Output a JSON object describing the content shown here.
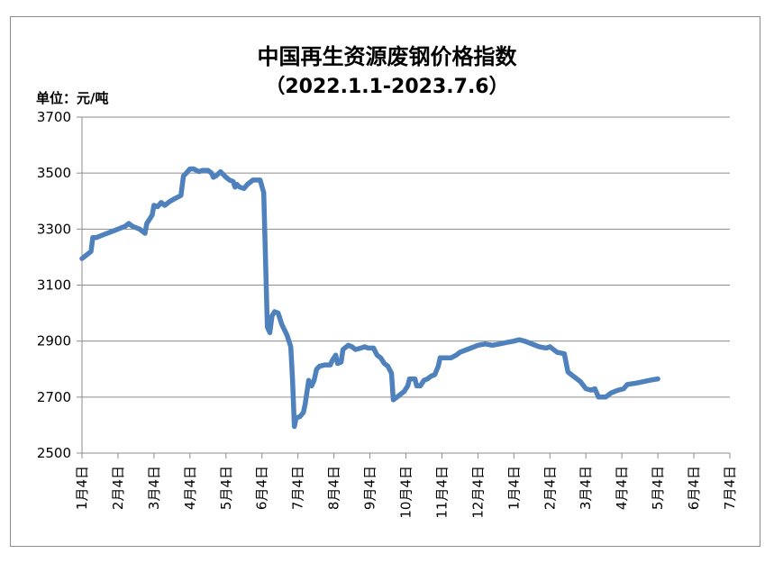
{
  "chart_data": {
    "type": "line",
    "title": "中国再生资源废钢价格指数",
    "subtitle": "（2022.1.1-2023.7.6）",
    "ylabel": "单位：元/吨",
    "ylim": [
      2500,
      3700
    ],
    "yticks": [
      "3700",
      "3500",
      "3300",
      "3100",
      "2900",
      "2700",
      "2500"
    ],
    "grid": true,
    "legend": "none",
    "categories": [
      "1月4日",
      "2月4日",
      "3月4日",
      "4月4日",
      "5月4日",
      "6月4日",
      "7月4日",
      "8月4日",
      "9月4日",
      "10月4日",
      "11月4日",
      "12月4日",
      "1月4日",
      "2月4日",
      "3月4日",
      "4月4日",
      "5月4日",
      "6月4日",
      "7月4日"
    ],
    "series": [
      {
        "color": "#4f81bd",
        "values": [
          [
            0,
            3195
          ],
          [
            0.15,
            3210
          ],
          [
            0.25,
            3220
          ],
          [
            0.3,
            3270
          ],
          [
            0.4,
            3270
          ],
          [
            0.6,
            3280
          ],
          [
            0.9,
            3295
          ],
          [
            1.2,
            3310
          ],
          [
            1.3,
            3320
          ],
          [
            1.4,
            3310
          ],
          [
            1.6,
            3300
          ],
          [
            1.75,
            3285
          ],
          [
            1.8,
            3320
          ],
          [
            1.95,
            3350
          ],
          [
            2.0,
            3385
          ],
          [
            2.1,
            3380
          ],
          [
            2.2,
            3395
          ],
          [
            2.3,
            3385
          ],
          [
            2.45,
            3400
          ],
          [
            2.6,
            3410
          ],
          [
            2.75,
            3420
          ],
          [
            2.82,
            3490
          ],
          [
            2.9,
            3500
          ],
          [
            3.0,
            3515
          ],
          [
            3.1,
            3515
          ],
          [
            3.25,
            3505
          ],
          [
            3.35,
            3510
          ],
          [
            3.5,
            3510
          ],
          [
            3.6,
            3500
          ],
          [
            3.65,
            3485
          ],
          [
            3.72,
            3490
          ],
          [
            3.85,
            3505
          ],
          [
            4.0,
            3485
          ],
          [
            4.1,
            3475
          ],
          [
            4.2,
            3470
          ],
          [
            4.25,
            3450
          ],
          [
            4.3,
            3460
          ],
          [
            4.38,
            3450
          ],
          [
            4.5,
            3445
          ],
          [
            4.6,
            3460
          ],
          [
            4.75,
            3475
          ],
          [
            4.85,
            3475
          ],
          [
            4.95,
            3475
          ],
          [
            5.05,
            3430
          ],
          [
            5.15,
            2950
          ],
          [
            5.22,
            2930
          ],
          [
            5.28,
            2990
          ],
          [
            5.35,
            3005
          ],
          [
            5.45,
            3000
          ],
          [
            5.55,
            2960
          ],
          [
            5.7,
            2920
          ],
          [
            5.8,
            2880
          ],
          [
            5.85,
            2760
          ],
          [
            5.9,
            2595
          ],
          [
            5.95,
            2625
          ],
          [
            6.05,
            2630
          ],
          [
            6.15,
            2645
          ],
          [
            6.2,
            2675
          ],
          [
            6.3,
            2760
          ],
          [
            6.38,
            2740
          ],
          [
            6.45,
            2760
          ],
          [
            6.52,
            2800
          ],
          [
            6.6,
            2810
          ],
          [
            6.75,
            2815
          ],
          [
            6.9,
            2815
          ],
          [
            6.95,
            2830
          ],
          [
            7.05,
            2850
          ],
          [
            7.1,
            2820
          ],
          [
            7.2,
            2825
          ],
          [
            7.25,
            2870
          ],
          [
            7.4,
            2885
          ],
          [
            7.5,
            2880
          ],
          [
            7.6,
            2870
          ],
          [
            7.75,
            2875
          ],
          [
            7.85,
            2880
          ],
          [
            7.95,
            2875
          ],
          [
            8.1,
            2875
          ],
          [
            8.2,
            2850
          ],
          [
            8.3,
            2840
          ],
          [
            8.4,
            2820
          ],
          [
            8.5,
            2810
          ],
          [
            8.6,
            2785
          ],
          [
            8.65,
            2690
          ],
          [
            8.8,
            2705
          ],
          [
            8.95,
            2720
          ],
          [
            9.05,
            2740
          ],
          [
            9.1,
            2765
          ],
          [
            9.25,
            2765
          ],
          [
            9.3,
            2740
          ],
          [
            9.4,
            2740
          ],
          [
            9.5,
            2760
          ],
          [
            9.6,
            2765
          ],
          [
            9.7,
            2775
          ],
          [
            9.8,
            2780
          ],
          [
            9.9,
            2810
          ],
          [
            9.95,
            2840
          ],
          [
            10.05,
            2840
          ],
          [
            10.25,
            2840
          ],
          [
            10.4,
            2850
          ],
          [
            10.5,
            2860
          ],
          [
            10.7,
            2870
          ],
          [
            10.9,
            2880
          ],
          [
            11.0,
            2885
          ],
          [
            11.2,
            2890
          ],
          [
            11.4,
            2885
          ],
          [
            11.6,
            2890
          ],
          [
            11.8,
            2895
          ],
          [
            12.0,
            2900
          ],
          [
            12.15,
            2905
          ],
          [
            12.3,
            2900
          ],
          [
            12.5,
            2890
          ],
          [
            12.7,
            2880
          ],
          [
            12.9,
            2875
          ],
          [
            13.0,
            2880
          ],
          [
            13.1,
            2870
          ],
          [
            13.2,
            2860
          ],
          [
            13.4,
            2855
          ],
          [
            13.5,
            2790
          ],
          [
            13.7,
            2770
          ],
          [
            13.85,
            2755
          ],
          [
            14.0,
            2730
          ],
          [
            14.15,
            2725
          ],
          [
            14.25,
            2730
          ],
          [
            14.35,
            2700
          ],
          [
            14.55,
            2700
          ],
          [
            14.7,
            2715
          ],
          [
            14.9,
            2725
          ],
          [
            15.05,
            2730
          ],
          [
            15.15,
            2745
          ],
          [
            15.4,
            2750
          ],
          [
            15.7,
            2758
          ],
          [
            15.85,
            2762
          ],
          [
            16.0,
            2765
          ]
        ]
      }
    ]
  }
}
